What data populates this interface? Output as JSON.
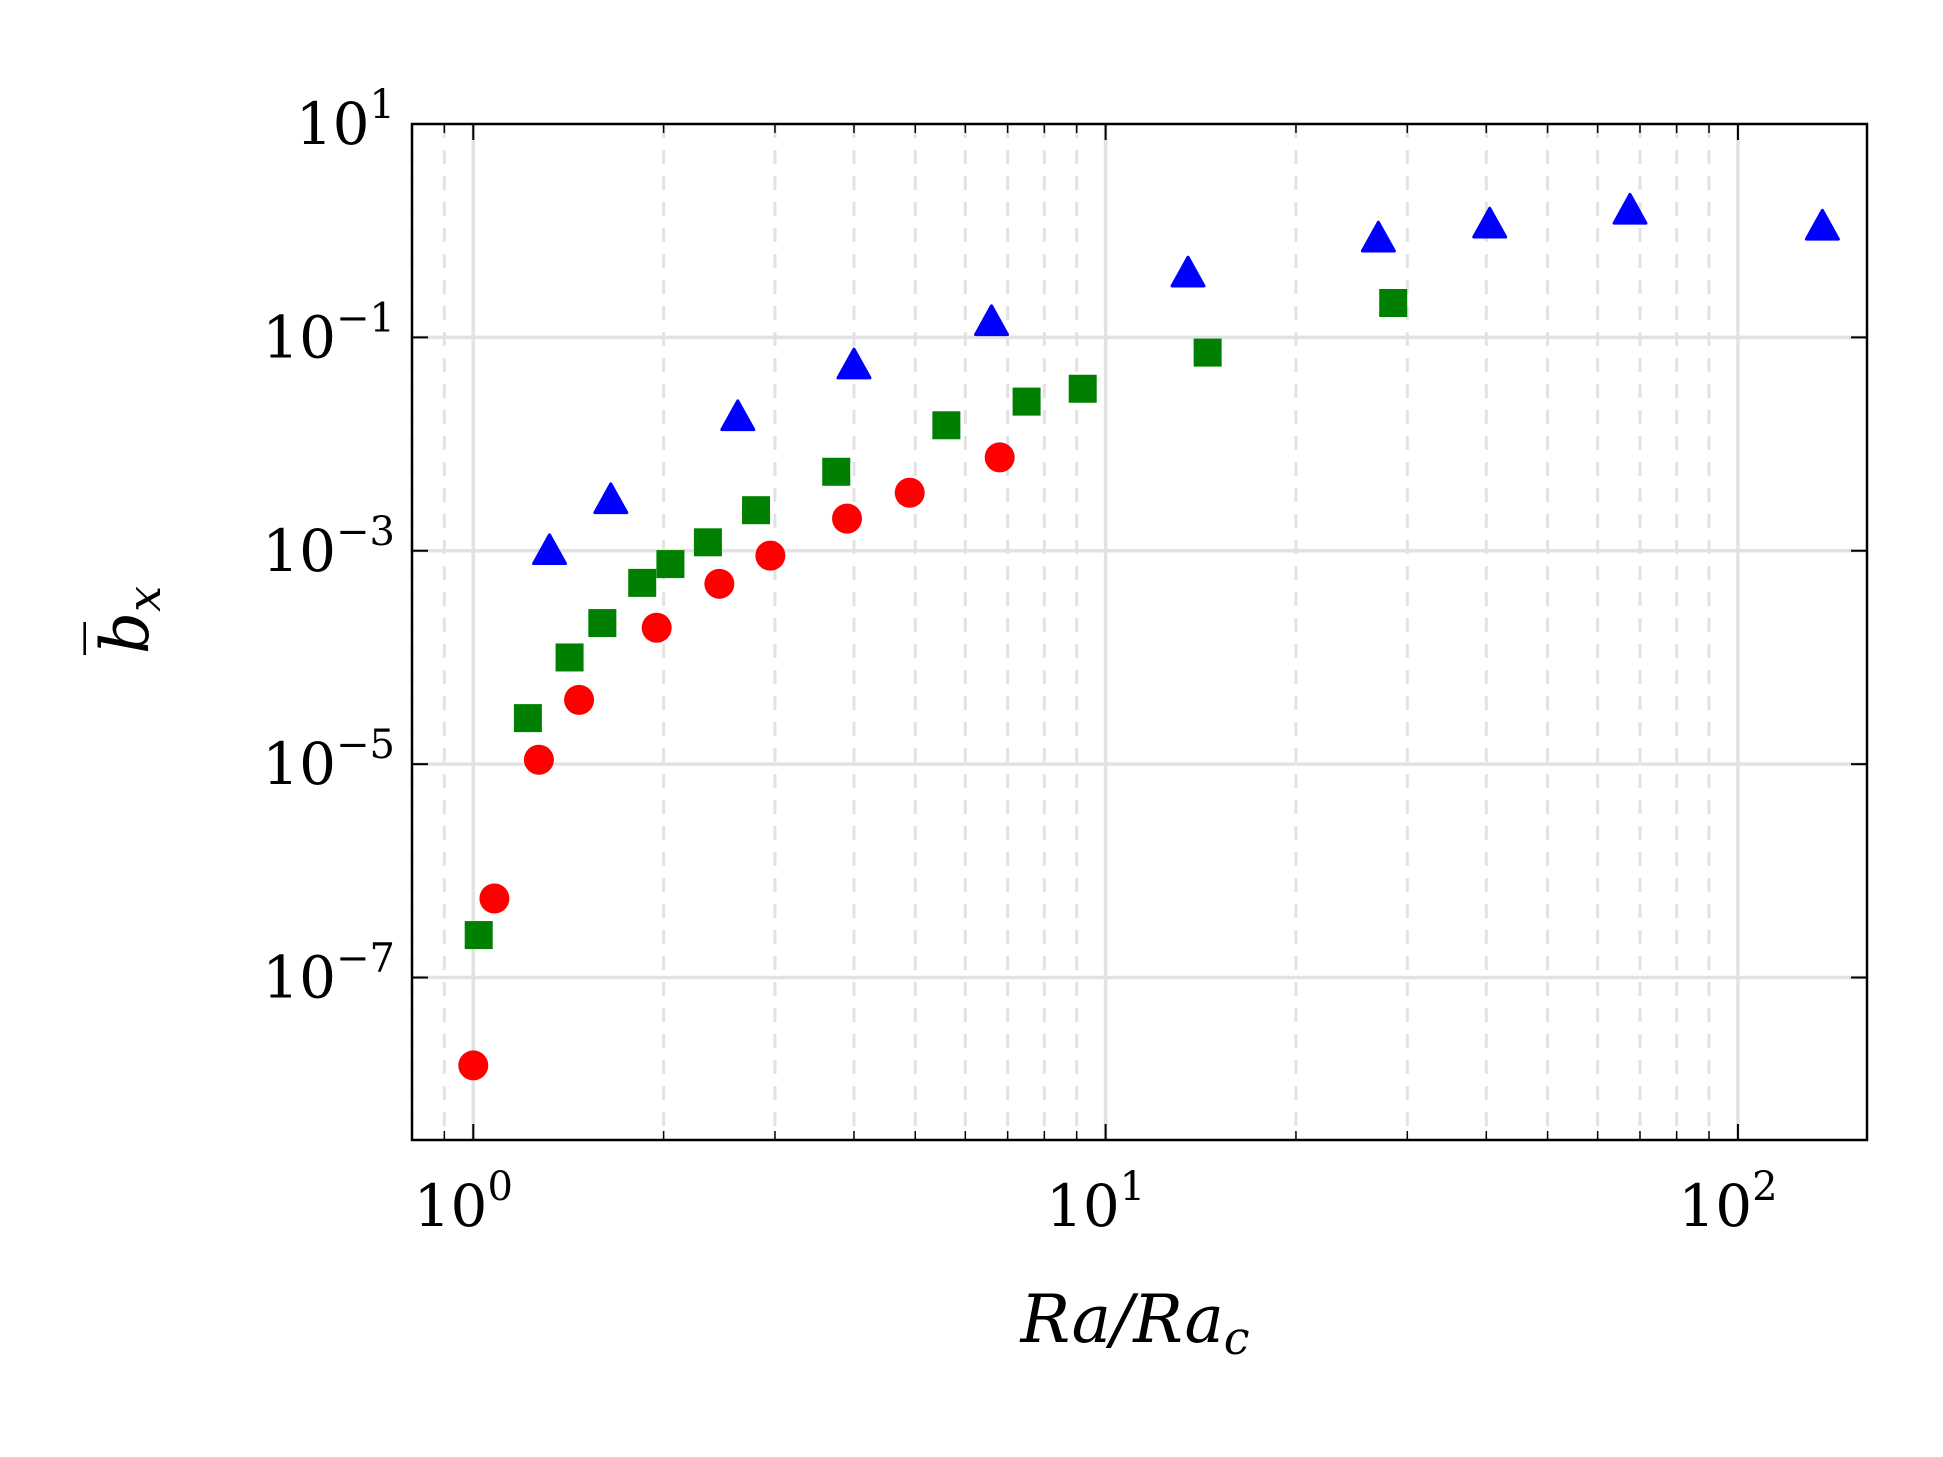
{
  "chart_data": {
    "type": "scatter",
    "xscale": "log",
    "yscale": "log",
    "xlim": [
      0.8,
      160
    ],
    "ylim": [
      3e-09,
      10
    ],
    "xlabel": {
      "main": "Ra/Ra",
      "sub": "c"
    },
    "ylabel": {
      "main": "b̅",
      "sub": "x"
    },
    "x_ticks": [
      {
        "base": "10",
        "exp": "0",
        "value": 1
      },
      {
        "base": "10",
        "exp": "1",
        "value": 10
      },
      {
        "base": "10",
        "exp": "2",
        "value": 100
      }
    ],
    "y_ticks": [
      {
        "base": "10",
        "exp": "1",
        "value": 10
      },
      {
        "base": "10",
        "exp": "−1",
        "value": 0.1
      },
      {
        "base": "10",
        "exp": "−3",
        "value": 0.001
      },
      {
        "base": "10",
        "exp": "−5",
        "value": 1e-05
      },
      {
        "base": "10",
        "exp": "−7",
        "value": 1e-07
      }
    ],
    "grid": {
      "major": true,
      "minor_x": true
    },
    "series": [
      {
        "name": "circles",
        "marker": "circle",
        "color": "#ff0000",
        "points": [
          [
            1.0,
            1.5e-08
          ],
          [
            1.08,
            5.5e-07
          ],
          [
            1.27,
            1.1e-05
          ],
          [
            1.47,
            4e-05
          ],
          [
            1.95,
            0.00019
          ],
          [
            2.45,
            0.00049
          ],
          [
            2.95,
            0.0009
          ],
          [
            3.9,
            0.002
          ],
          [
            4.9,
            0.0035
          ],
          [
            6.8,
            0.0075
          ]
        ]
      },
      {
        "name": "squares",
        "marker": "square",
        "color": "#008000",
        "points": [
          [
            1.02,
            2.5e-07
          ],
          [
            1.22,
            2.7e-05
          ],
          [
            1.42,
            0.0001
          ],
          [
            1.6,
            0.00021
          ],
          [
            1.85,
            0.0005
          ],
          [
            2.05,
            0.00075
          ],
          [
            2.35,
            0.0012
          ],
          [
            2.8,
            0.0024
          ],
          [
            3.75,
            0.0055
          ],
          [
            5.6,
            0.015
          ],
          [
            7.5,
            0.025
          ],
          [
            9.2,
            0.033
          ],
          [
            14.5,
            0.072
          ],
          [
            28.5,
            0.21
          ]
        ]
      },
      {
        "name": "triangles",
        "marker": "triangle",
        "color": "#0000ff",
        "points": [
          [
            1.32,
            0.001
          ],
          [
            1.65,
            0.003
          ],
          [
            2.62,
            0.018
          ],
          [
            4.0,
            0.055
          ],
          [
            6.6,
            0.14
          ],
          [
            13.5,
            0.4
          ],
          [
            27.0,
            0.85
          ],
          [
            40.5,
            1.15
          ],
          [
            67.5,
            1.55
          ],
          [
            136.0,
            1.1
          ]
        ]
      }
    ]
  }
}
